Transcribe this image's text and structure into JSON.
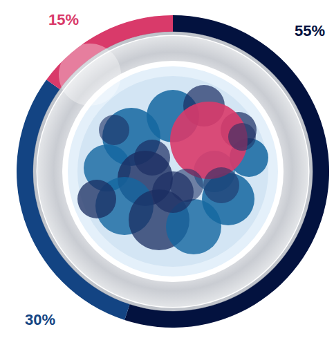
{
  "chart_data": {
    "type": "pie",
    "values": [
      55,
      30,
      15
    ],
    "value_labels": [
      "55%",
      "30%",
      "15%"
    ],
    "colors": [
      "#03123f",
      "#134483",
      "#d93a6a"
    ],
    "data_labels": true
  }
}
